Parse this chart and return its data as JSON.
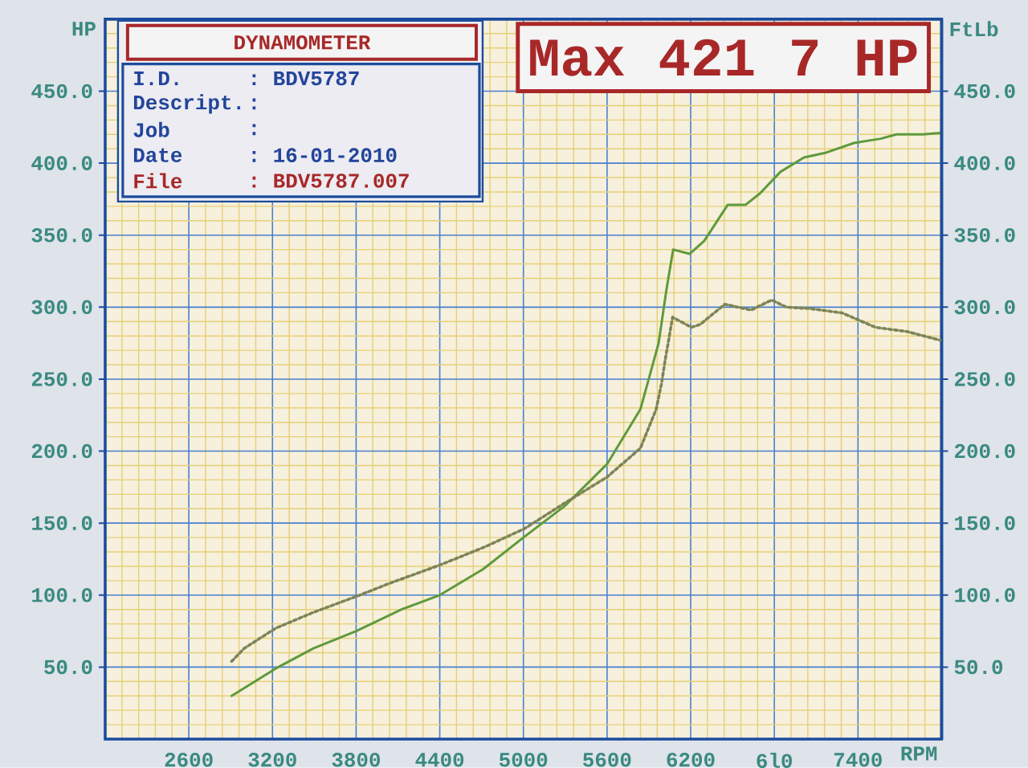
{
  "chart_data": {
    "type": "line",
    "title": "DYNAMOMETER",
    "xlabel": "RPM",
    "ylabel": "HP",
    "y2label": "FtLb",
    "annotations": [
      "Max 421 7 HP",
      "I.D.",
      ": BDV5787",
      "Descript.",
      ":",
      "Job",
      ":",
      "Date",
      ": 16-01-2010",
      "File",
      ": BDV5787.007"
    ],
    "xlim": [
      2000,
      8000
    ],
    "xticks": [
      {
        "value": 2120,
        "label": null
      },
      {
        "value": 2240,
        "label": null
      },
      {
        "value": 2360,
        "label": null
      },
      {
        "value": 2480,
        "label": null
      },
      2600,
      {
        "value": 2720,
        "label": null
      },
      {
        "value": 2840,
        "label": null
      },
      {
        "value": 2960,
        "label": null
      },
      {
        "value": 3080,
        "label": null
      },
      3200,
      {
        "value": 3320,
        "label": null
      },
      {
        "value": 3440,
        "label": null
      },
      {
        "value": 3560,
        "label": null
      },
      {
        "value": 3680,
        "label": null
      },
      3800,
      {
        "value": 3920,
        "label": null
      },
      {
        "value": 4040,
        "label": null
      },
      {
        "value": 4160,
        "label": null
      },
      {
        "value": 4280,
        "label": null
      },
      4400,
      {
        "value": 4520,
        "label": null
      },
      {
        "value": 4640,
        "label": null
      },
      {
        "value": 4760,
        "label": null
      },
      {
        "value": 4880,
        "label": null
      },
      5000,
      {
        "value": 5120,
        "label": null
      },
      {
        "value": 5240,
        "label": null
      },
      {
        "value": 5360,
        "label": null
      },
      {
        "value": 5480,
        "label": null
      },
      5600,
      {
        "value": 5720,
        "label": null
      },
      {
        "value": 5840,
        "label": null
      },
      {
        "value": 5960,
        "label": null
      },
      {
        "value": 6080,
        "label": null
      },
      6200,
      {
        "value": 6320,
        "label": null
      },
      {
        "value": 6440,
        "label": null
      },
      {
        "value": 6560,
        "label": null
      },
      {
        "value": 6680,
        "label": null
      },
      {
        "value": 6800,
        "label": "6l0"
      },
      {
        "value": 6920,
        "label": null
      },
      {
        "value": 7040,
        "label": null
      },
      {
        "value": 7160,
        "label": null
      },
      {
        "value": 7280,
        "label": null
      },
      7400,
      {
        "value": 7520,
        "label": null
      },
      {
        "value": 7640,
        "label": null
      },
      {
        "value": 7760,
        "label": null
      },
      {
        "value": 7880,
        "label": null
      }
    ],
    "ylim": [
      0,
      500
    ],
    "yticks": [
      {
        "value": 10,
        "label": null
      },
      {
        "value": 20,
        "label": null
      },
      {
        "value": 30,
        "label": null
      },
      {
        "value": 40,
        "label": null
      },
      {
        "value": 50,
        "label": "50.0"
      },
      {
        "value": 60,
        "label": null
      },
      {
        "value": 70,
        "label": null
      },
      {
        "value": 80,
        "label": null
      },
      {
        "value": 90,
        "label": null
      },
      {
        "value": 100,
        "label": "100.0"
      },
      {
        "value": 110,
        "label": null
      },
      {
        "value": 120,
        "label": null
      },
      {
        "value": 130,
        "label": null
      },
      {
        "value": 140,
        "label": null
      },
      {
        "value": 150,
        "label": "150.0"
      },
      {
        "value": 160,
        "label": null
      },
      {
        "value": 170,
        "label": null
      },
      {
        "value": 180,
        "label": null
      },
      {
        "value": 190,
        "label": null
      },
      {
        "value": 200,
        "label": "200.0"
      },
      {
        "value": 210,
        "label": null
      },
      {
        "value": 220,
        "label": null
      },
      {
        "value": 230,
        "label": null
      },
      {
        "value": 240,
        "label": null
      },
      {
        "value": 250,
        "label": "250.0"
      },
      {
        "value": 260,
        "label": null
      },
      {
        "value": 270,
        "label": null
      },
      {
        "value": 280,
        "label": null
      },
      {
        "value": 290,
        "label": null
      },
      {
        "value": 300,
        "label": "300.0"
      },
      {
        "value": 310,
        "label": null
      },
      {
        "value": 320,
        "label": null
      },
      {
        "value": 330,
        "label": null
      },
      {
        "value": 340,
        "label": null
      },
      {
        "value": 350,
        "label": "350.0"
      },
      {
        "value": 360,
        "label": null
      },
      {
        "value": 370,
        "label": null
      },
      {
        "value": 380,
        "label": null
      },
      {
        "value": 390,
        "label": null
      },
      {
        "value": 400,
        "label": "400.0"
      },
      {
        "value": 410,
        "label": null
      },
      {
        "value": 420,
        "label": null
      },
      {
        "value": 430,
        "label": null
      },
      {
        "value": 440,
        "label": null
      },
      {
        "value": 450,
        "label": "450.0"
      },
      {
        "value": 460,
        "label": null
      },
      {
        "value": 470,
        "label": null
      },
      {
        "value": 480,
        "label": null
      },
      {
        "value": 490,
        "label": null
      }
    ],
    "y2lim": [
      0,
      500
    ],
    "y2ticks": [
      {
        "value": 50,
        "label": "50.0"
      },
      {
        "value": 100,
        "label": "100.0"
      },
      {
        "value": 150,
        "label": "150.0"
      },
      {
        "value": 200,
        "label": "200.0"
      },
      {
        "value": 250,
        "label": "250.0"
      },
      {
        "value": 300,
        "label": "300.0"
      },
      {
        "value": 350,
        "label": "350.0"
      },
      {
        "value": 400,
        "label": "400.0"
      },
      {
        "value": 450,
        "label": "450.0"
      }
    ],
    "grid": true,
    "series": [
      {
        "color": "#5f9a3c",
        "line_style": "solid",
        "x": [
          2907,
          3223,
          3493,
          3800,
          4125,
          4400,
          4711,
          5000,
          5298,
          5600,
          5839,
          5970,
          6026,
          6074,
          6192,
          6297,
          6465,
          6592,
          6697,
          6844,
          7013,
          7160,
          7371,
          7563,
          7677,
          7867,
          7990
        ],
        "values": [
          30,
          49,
          63,
          75,
          90,
          100,
          118,
          140,
          162,
          191,
          229,
          275,
          312,
          340,
          337,
          346,
          371,
          371,
          379,
          394,
          404,
          407,
          414,
          417,
          420,
          420,
          421
        ]
      },
      {
        "color": "#7d8456",
        "line_style": "dotted",
        "axis": "y2",
        "x": [
          2907,
          2997,
          3223,
          3493,
          3800,
          4035,
          4404,
          4711,
          5005,
          5298,
          5600,
          5839,
          5952,
          5989,
          6020,
          6070,
          6205,
          6268,
          6444,
          6634,
          6781,
          6886,
          7055,
          7286,
          7525,
          7753,
          7990
        ],
        "values": [
          54,
          63,
          77,
          88,
          99,
          108,
          121,
          133,
          146,
          164,
          182,
          202,
          229,
          246,
          265,
          293,
          286,
          288,
          302,
          298,
          305,
          300,
          299,
          296,
          286,
          283,
          277
        ]
      }
    ]
  }
}
